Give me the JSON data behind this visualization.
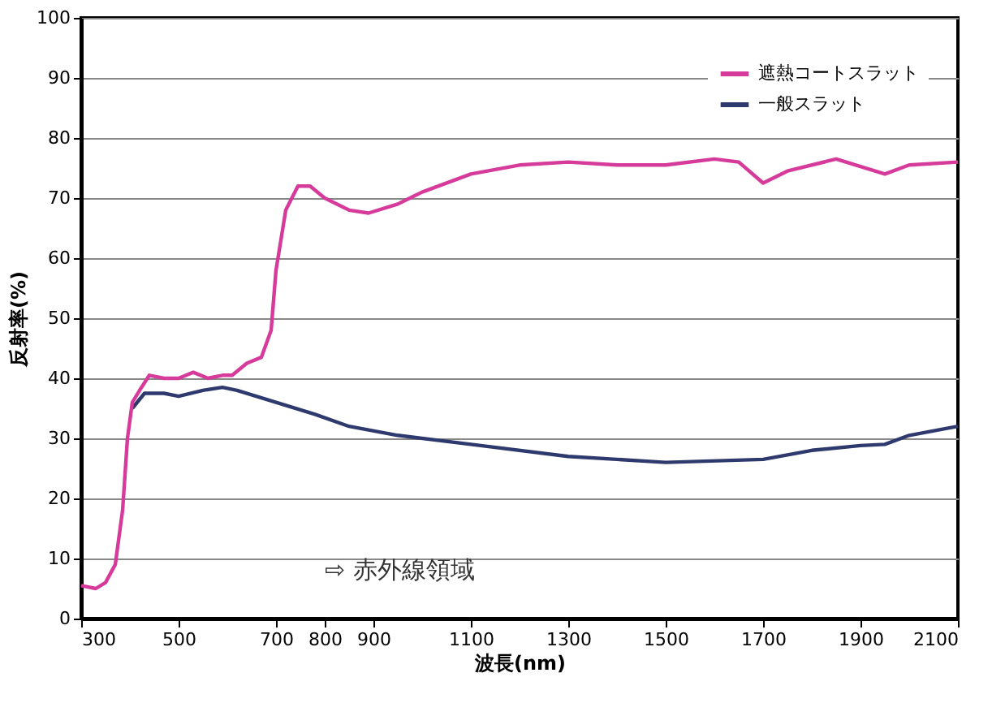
{
  "chart_data": {
    "type": "line",
    "xlabel": "波長(nm)",
    "ylabel": "反射率(%)",
    "xlim": [
      300,
      2100
    ],
    "xticks": [
      300,
      500,
      700,
      800,
      900,
      1100,
      1300,
      1500,
      1700,
      1900,
      2100
    ],
    "ylim": [
      0,
      100
    ],
    "yticks": [
      0,
      10,
      20,
      30,
      40,
      50,
      60,
      70,
      80,
      90,
      100
    ],
    "grid": "y",
    "legend": "top right",
    "annotations": [
      "⇨ 赤外線領域"
    ],
    "series": [
      {
        "name": "遮熱コートスラット",
        "color": "#d63a9a",
        "x": [
          300,
          330,
          350,
          370,
          385,
          395,
          405,
          420,
          440,
          470,
          500,
          530,
          560,
          590,
          610,
          640,
          670,
          690,
          700,
          720,
          745,
          770,
          800,
          850,
          890,
          950,
          1000,
          1100,
          1200,
          1300,
          1400,
          1500,
          1600,
          1650,
          1700,
          1750,
          1850,
          1950,
          2000,
          2100
        ],
        "values": [
          5.5,
          5,
          6,
          9,
          18,
          30,
          36,
          38,
          40.5,
          40,
          40,
          41,
          40,
          40.5,
          40.5,
          42.5,
          43.5,
          48,
          58,
          68,
          72,
          72,
          70,
          68,
          67.5,
          69,
          71,
          74,
          75.5,
          76,
          75.5,
          75.5,
          76.5,
          76,
          72.5,
          74.5,
          76.5,
          74,
          75.5,
          76
        ]
      },
      {
        "name": "一般スラット",
        "color": "#2e3a6e",
        "x": [
          405,
          430,
          470,
          500,
          550,
          590,
          620,
          700,
          780,
          850,
          950,
          1100,
          1300,
          1500,
          1700,
          1800,
          1900,
          1950,
          2000,
          2100
        ],
        "values": [
          35,
          37.5,
          37.5,
          37,
          38,
          38.5,
          38,
          36,
          34,
          32,
          30.5,
          29,
          27,
          26,
          26.5,
          28,
          28.8,
          29,
          30.5,
          32
        ]
      }
    ]
  }
}
